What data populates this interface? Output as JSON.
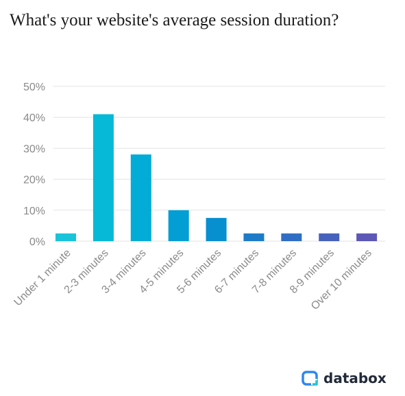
{
  "title": "What's your website's average session duration?",
  "brand": {
    "name": "databox",
    "icon": "databox-logo-icon"
  },
  "chart_data": {
    "type": "bar",
    "title": "What's your website's average session duration?",
    "xlabel": "",
    "ylabel": "",
    "ylim": [
      0,
      50
    ],
    "y_ticks": [
      "0%",
      "10%",
      "20%",
      "30%",
      "40%",
      "50%"
    ],
    "y_tick_values": [
      0,
      10,
      20,
      30,
      40,
      50
    ],
    "grid": true,
    "categories": [
      "Under 1 minute",
      "2-3 minutes",
      "3-4 minutes",
      "4-5 minutes",
      "5-6 minutes",
      "6-7 minutes",
      "7-8 minutes",
      "8-9 minutes",
      "Over 10 minutes"
    ],
    "values": [
      2.5,
      41,
      28,
      10,
      7.5,
      2.5,
      2.5,
      2.5,
      2.5
    ],
    "colors": [
      "#19c3d9",
      "#06b9d6",
      "#02acd6",
      "#029ed4",
      "#088fd0",
      "#1d7bc8",
      "#2f6ec4",
      "#4662bc",
      "#5d57b6"
    ]
  }
}
